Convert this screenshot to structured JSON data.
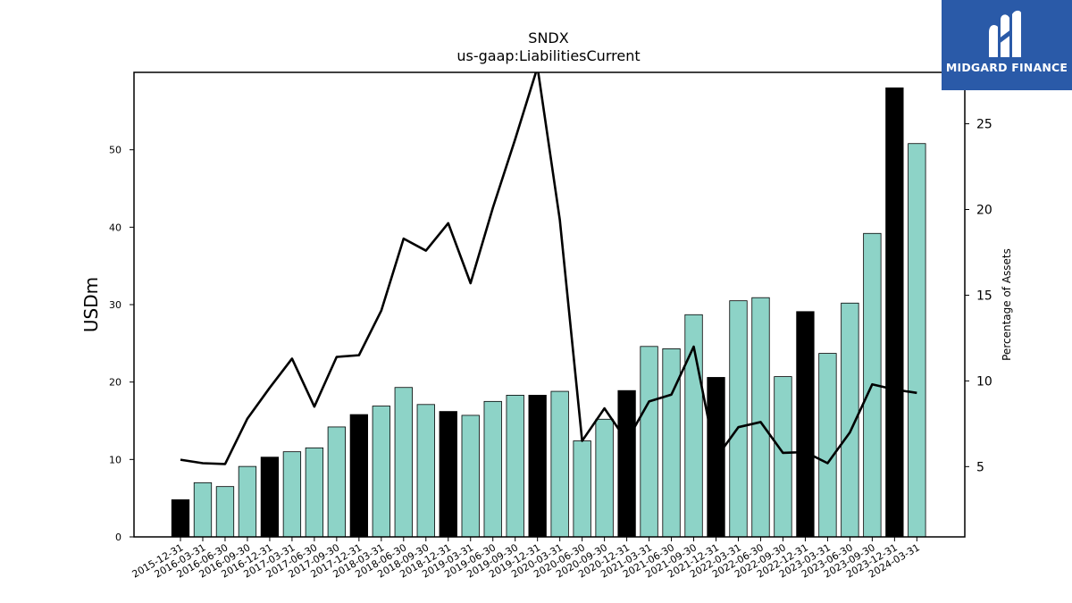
{
  "brand": {
    "name": "MIDGARD FINANCE",
    "bg_color": "#2a5aa8"
  },
  "chart_data": {
    "type": "bar",
    "title": "SNDX",
    "subtitle": "us-gaap:LiabilitiesCurrent",
    "ylabel": "USDm",
    "y2label": "Percentage of Assets",
    "ylim": [
      0,
      60
    ],
    "y2lim": [
      0.9,
      28.0
    ],
    "yticks": [
      0,
      10,
      20,
      30,
      40,
      50
    ],
    "y2ticks": [
      5,
      10,
      15,
      20,
      25
    ],
    "colors": {
      "quarter_bar": "#8dd3c7",
      "year_end_bar": "#000000",
      "line": "#000000"
    },
    "categories": [
      "2015-12-31",
      "2016-03-31",
      "2016-06-30",
      "2016-09-30",
      "2016-12-31",
      "2017-03-31",
      "2017-06-30",
      "2017-09-30",
      "2017-12-31",
      "2018-03-31",
      "2018-06-30",
      "2018-09-30",
      "2018-12-31",
      "2019-03-31",
      "2019-06-30",
      "2019-09-30",
      "2019-12-31",
      "2020-03-31",
      "2020-06-30",
      "2020-09-30",
      "2020-12-31",
      "2021-03-31",
      "2021-06-30",
      "2021-09-30",
      "2021-12-31",
      "2022-03-31",
      "2022-06-30",
      "2022-09-30",
      "2022-12-31",
      "2023-03-31",
      "2023-06-30",
      "2023-09-30",
      "2023-12-31",
      "2024-03-31"
    ],
    "series": [
      {
        "type": "bar",
        "values": [
          4.8,
          7.0,
          6.5,
          9.1,
          10.3,
          11.0,
          11.5,
          14.2,
          15.8,
          16.9,
          19.3,
          17.1,
          16.2,
          15.7,
          17.5,
          18.3,
          18.3,
          18.8,
          12.4,
          15.2,
          18.9,
          24.6,
          24.3,
          28.7,
          20.6,
          30.5,
          30.9,
          20.7,
          29.1,
          23.7,
          30.2,
          39.2,
          58.0,
          50.8
        ]
      },
      {
        "type": "line",
        "axis": "right",
        "values": [
          5.4,
          5.2,
          5.15,
          7.8,
          9.6,
          11.3,
          8.5,
          11.4,
          11.5,
          14.1,
          18.3,
          17.6,
          19.2,
          15.7,
          20.1,
          24.1,
          28.3,
          19.4,
          6.5,
          8.4,
          6.5,
          8.8,
          9.2,
          12.0,
          5.5,
          7.3,
          7.6,
          5.8,
          5.85,
          5.2,
          7.0,
          9.8,
          9.5,
          9.3
        ]
      }
    ]
  }
}
